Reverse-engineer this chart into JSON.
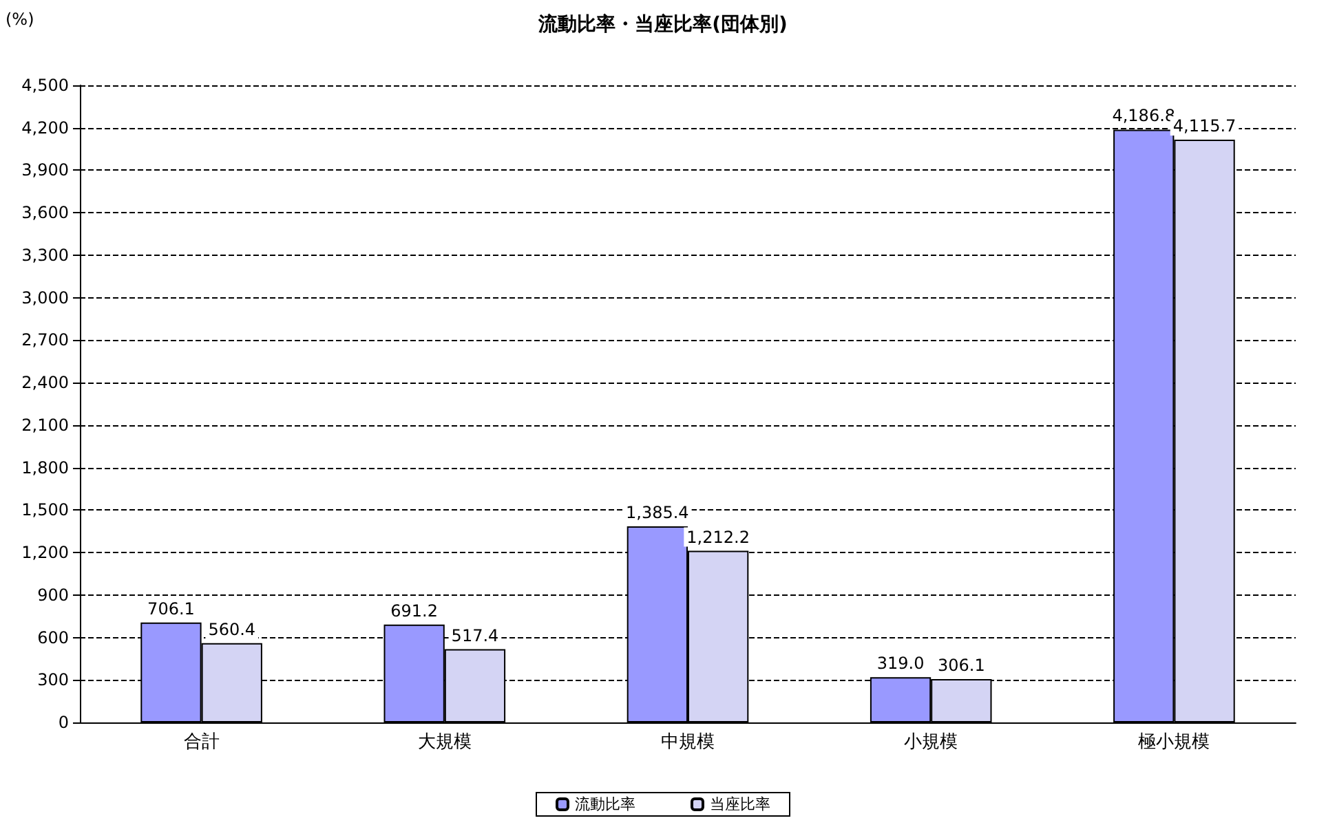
{
  "chart_data": {
    "type": "bar",
    "title": "流動比率・当座比率(団体別)",
    "ylabel": "(%)",
    "categories": [
      "合計",
      "大規模",
      "中規模",
      "小規模",
      "極小規模"
    ],
    "series": [
      {
        "name": "流動比率",
        "color": "#9999ff",
        "values": [
          706.1,
          691.2,
          1385.4,
          319.0,
          4186.8
        ],
        "value_labels": [
          "706.1",
          "691.2",
          "1,385.4",
          "319.0",
          "4,186.8"
        ]
      },
      {
        "name": "当座比率",
        "color": "#d4d4f4",
        "values": [
          560.4,
          517.4,
          1212.2,
          306.1,
          4115.7
        ],
        "value_labels": [
          "560.4",
          "517.4",
          "1,212.2",
          "306.1",
          "4,115.7"
        ]
      }
    ],
    "ylim": [
      0,
      4500
    ],
    "yticks": [
      0,
      300,
      600,
      900,
      {
        "value": 1200,
        "label": "1,200"
      },
      {
        "value": 1500,
        "label": "1,500"
      },
      {
        "value": 1800,
        "label": "1,800"
      },
      {
        "value": 2100,
        "label": "2,100"
      },
      {
        "value": 2400,
        "label": "2,400"
      },
      {
        "value": 2700,
        "label": "2,700"
      },
      {
        "value": 3000,
        "label": "3,000"
      },
      {
        "value": 3300,
        "label": "3,300"
      },
      {
        "value": 3600,
        "label": "3,600"
      },
      {
        "value": 3900,
        "label": "3,900"
      },
      {
        "value": 4200,
        "label": "4,200"
      },
      {
        "value": 4500,
        "label": "4,500"
      }
    ],
    "grid": "y",
    "legend": "bottom"
  }
}
